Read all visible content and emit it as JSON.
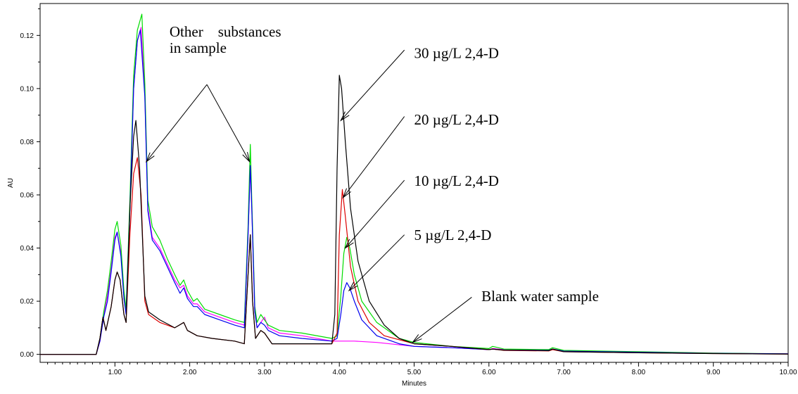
{
  "chart_data": {
    "type": "line",
    "xlabel": "Minutes",
    "ylabel": "AU",
    "xlim": [
      0,
      10
    ],
    "ylim": [
      -0.003,
      0.132
    ],
    "grid": false,
    "x_ticks": [
      1,
      2,
      3,
      4,
      5,
      6,
      7,
      8,
      9,
      10
    ],
    "x_tick_labels": [
      "1.00",
      "2.00",
      "3.00",
      "4.00",
      "5.00",
      "6.00",
      "7.00",
      "8.00",
      "9.00",
      "10.00"
    ],
    "x_minor_step": 0.1,
    "y_ticks": [
      0,
      0.02,
      0.04,
      0.06,
      0.08,
      0.1,
      0.12
    ],
    "y_tick_labels": [
      "0.00",
      "0.02",
      "0.04",
      "0.06",
      "0.08",
      "0.10",
      "0.12"
    ],
    "series": [
      {
        "color": "#ff00ff",
        "points": [
          [
            0,
            0
          ],
          [
            0.75,
            0
          ],
          [
            0.8,
            0.005
          ],
          [
            0.85,
            0.015
          ],
          [
            0.9,
            0.022
          ],
          [
            0.95,
            0.032
          ],
          [
            1.0,
            0.044
          ],
          [
            1.03,
            0.046
          ],
          [
            1.08,
            0.038
          ],
          [
            1.12,
            0.022
          ],
          [
            1.15,
            0.016
          ],
          [
            1.2,
            0.055
          ],
          [
            1.25,
            0.1
          ],
          [
            1.3,
            0.118
          ],
          [
            1.35,
            0.123
          ],
          [
            1.4,
            0.098
          ],
          [
            1.44,
            0.055
          ],
          [
            1.5,
            0.044
          ],
          [
            1.6,
            0.04
          ],
          [
            1.7,
            0.034
          ],
          [
            1.8,
            0.028
          ],
          [
            1.87,
            0.025
          ],
          [
            1.92,
            0.026
          ],
          [
            1.97,
            0.022
          ],
          [
            2.05,
            0.019
          ],
          [
            2.1,
            0.019
          ],
          [
            2.2,
            0.016
          ],
          [
            2.4,
            0.014
          ],
          [
            2.6,
            0.012
          ],
          [
            2.73,
            0.011
          ],
          [
            2.78,
            0.045
          ],
          [
            2.81,
            0.07
          ],
          [
            2.83,
            0.055
          ],
          [
            2.87,
            0.016
          ],
          [
            2.9,
            0.01
          ],
          [
            2.95,
            0.012
          ],
          [
            3.0,
            0.014
          ],
          [
            3.05,
            0.01
          ],
          [
            3.2,
            0.008
          ],
          [
            3.5,
            0.007
          ],
          [
            3.9,
            0.005
          ],
          [
            4.2,
            0.005
          ],
          [
            4.5,
            0.0045
          ],
          [
            5.0,
            0.003
          ],
          [
            5.5,
            0.0025
          ],
          [
            6.0,
            0.0018
          ],
          [
            6.05,
            0.0022
          ],
          [
            6.2,
            0.0018
          ],
          [
            6.8,
            0.0015
          ],
          [
            6.85,
            0.002
          ],
          [
            7.0,
            0.0012
          ],
          [
            8.0,
            0.0008
          ],
          [
            9.0,
            0.0004
          ],
          [
            10.0,
            0.0002
          ]
        ]
      },
      {
        "color": "#00dd00",
        "points": [
          [
            0,
            0
          ],
          [
            0.75,
            0
          ],
          [
            0.8,
            0.006
          ],
          [
            0.85,
            0.016
          ],
          [
            0.9,
            0.024
          ],
          [
            0.95,
            0.035
          ],
          [
            1.0,
            0.047
          ],
          [
            1.03,
            0.05
          ],
          [
            1.08,
            0.041
          ],
          [
            1.12,
            0.024
          ],
          [
            1.15,
            0.017
          ],
          [
            1.2,
            0.058
          ],
          [
            1.25,
            0.105
          ],
          [
            1.3,
            0.122
          ],
          [
            1.36,
            0.128
          ],
          [
            1.4,
            0.102
          ],
          [
            1.44,
            0.058
          ],
          [
            1.5,
            0.048
          ],
          [
            1.6,
            0.043
          ],
          [
            1.7,
            0.036
          ],
          [
            1.8,
            0.03
          ],
          [
            1.87,
            0.026
          ],
          [
            1.92,
            0.028
          ],
          [
            1.97,
            0.024
          ],
          [
            2.05,
            0.02
          ],
          [
            2.1,
            0.021
          ],
          [
            2.2,
            0.017
          ],
          [
            2.4,
            0.015
          ],
          [
            2.6,
            0.013
          ],
          [
            2.73,
            0.012
          ],
          [
            2.78,
            0.048
          ],
          [
            2.81,
            0.079
          ],
          [
            2.83,
            0.058
          ],
          [
            2.87,
            0.018
          ],
          [
            2.9,
            0.012
          ],
          [
            2.95,
            0.015
          ],
          [
            3.0,
            0.013
          ],
          [
            3.05,
            0.011
          ],
          [
            3.2,
            0.009
          ],
          [
            3.5,
            0.008
          ],
          [
            3.9,
            0.006
          ],
          [
            3.97,
            0.007
          ],
          [
            4.02,
            0.022
          ],
          [
            4.06,
            0.038
          ],
          [
            4.1,
            0.044
          ],
          [
            4.14,
            0.04
          ],
          [
            4.2,
            0.03
          ],
          [
            4.3,
            0.02
          ],
          [
            4.5,
            0.012
          ],
          [
            4.8,
            0.006
          ],
          [
            5.0,
            0.0045
          ],
          [
            5.5,
            0.003
          ],
          [
            6.0,
            0.0022
          ],
          [
            6.05,
            0.003
          ],
          [
            6.2,
            0.002
          ],
          [
            6.8,
            0.0018
          ],
          [
            6.85,
            0.0025
          ],
          [
            7.0,
            0.0015
          ],
          [
            8.0,
            0.001
          ],
          [
            9.0,
            0.0005
          ],
          [
            10.0,
            0.0002
          ]
        ]
      },
      {
        "color": "#0000ee",
        "points": [
          [
            0,
            0
          ],
          [
            0.75,
            0
          ],
          [
            0.8,
            0.005
          ],
          [
            0.85,
            0.014
          ],
          [
            0.9,
            0.02
          ],
          [
            0.95,
            0.031
          ],
          [
            1.0,
            0.043
          ],
          [
            1.03,
            0.046
          ],
          [
            1.08,
            0.037
          ],
          [
            1.12,
            0.021
          ],
          [
            1.15,
            0.015
          ],
          [
            1.2,
            0.054
          ],
          [
            1.25,
            0.1
          ],
          [
            1.3,
            0.118
          ],
          [
            1.34,
            0.122
          ],
          [
            1.4,
            0.097
          ],
          [
            1.44,
            0.054
          ],
          [
            1.5,
            0.043
          ],
          [
            1.6,
            0.039
          ],
          [
            1.7,
            0.033
          ],
          [
            1.8,
            0.027
          ],
          [
            1.87,
            0.023
          ],
          [
            1.92,
            0.025
          ],
          [
            1.97,
            0.021
          ],
          [
            2.05,
            0.018
          ],
          [
            2.1,
            0.018
          ],
          [
            2.2,
            0.015
          ],
          [
            2.4,
            0.013
          ],
          [
            2.6,
            0.011
          ],
          [
            2.73,
            0.01
          ],
          [
            2.78,
            0.045
          ],
          [
            2.81,
            0.071
          ],
          [
            2.83,
            0.055
          ],
          [
            2.87,
            0.016
          ],
          [
            2.9,
            0.01
          ],
          [
            2.95,
            0.012
          ],
          [
            3.0,
            0.011
          ],
          [
            3.05,
            0.009
          ],
          [
            3.2,
            0.007
          ],
          [
            3.5,
            0.006
          ],
          [
            3.9,
            0.005
          ],
          [
            3.97,
            0.006
          ],
          [
            4.02,
            0.015
          ],
          [
            4.06,
            0.024
          ],
          [
            4.1,
            0.027
          ],
          [
            4.14,
            0.025
          ],
          [
            4.2,
            0.02
          ],
          [
            4.3,
            0.013
          ],
          [
            4.5,
            0.007
          ],
          [
            4.8,
            0.004
          ],
          [
            5.0,
            0.003
          ],
          [
            5.5,
            0.0025
          ],
          [
            6.0,
            0.0018
          ],
          [
            6.05,
            0.002
          ],
          [
            6.2,
            0.0016
          ],
          [
            6.8,
            0.0015
          ],
          [
            6.85,
            0.002
          ],
          [
            7.0,
            0.0012
          ],
          [
            8.0,
            0.0008
          ],
          [
            9.0,
            0.0004
          ],
          [
            10.0,
            0.0002
          ]
        ]
      },
      {
        "color": "#dd0000",
        "points": [
          [
            0,
            0
          ],
          [
            0.75,
            0
          ],
          [
            0.8,
            0.006
          ],
          [
            0.84,
            0.014
          ],
          [
            0.88,
            0.009
          ],
          [
            0.95,
            0.018
          ],
          [
            1.0,
            0.028
          ],
          [
            1.03,
            0.031
          ],
          [
            1.07,
            0.028
          ],
          [
            1.12,
            0.015
          ],
          [
            1.15,
            0.012
          ],
          [
            1.2,
            0.045
          ],
          [
            1.25,
            0.068
          ],
          [
            1.3,
            0.074
          ],
          [
            1.35,
            0.06
          ],
          [
            1.4,
            0.02
          ],
          [
            1.45,
            0.015
          ],
          [
            1.6,
            0.012
          ],
          [
            1.8,
            0.01
          ],
          [
            1.92,
            0.012
          ],
          [
            1.97,
            0.009
          ],
          [
            2.1,
            0.007
          ],
          [
            2.3,
            0.006
          ],
          [
            2.6,
            0.005
          ],
          [
            2.73,
            0.004
          ],
          [
            2.78,
            0.03
          ],
          [
            2.81,
            0.045
          ],
          [
            2.84,
            0.02
          ],
          [
            2.88,
            0.006
          ],
          [
            2.95,
            0.009
          ],
          [
            3.0,
            0.008
          ],
          [
            3.1,
            0.004
          ],
          [
            3.5,
            0.004
          ],
          [
            3.9,
            0.004
          ],
          [
            3.97,
            0.008
          ],
          [
            4.0,
            0.045
          ],
          [
            4.04,
            0.062
          ],
          [
            4.08,
            0.052
          ],
          [
            4.15,
            0.033
          ],
          [
            4.25,
            0.02
          ],
          [
            4.4,
            0.012
          ],
          [
            4.6,
            0.007
          ],
          [
            5.0,
            0.004
          ],
          [
            5.5,
            0.003
          ],
          [
            6.0,
            0.0018
          ],
          [
            6.05,
            0.002
          ],
          [
            6.2,
            0.0015
          ],
          [
            6.8,
            0.0013
          ],
          [
            6.85,
            0.0018
          ],
          [
            7.0,
            0.001
          ],
          [
            8.0,
            0.0006
          ],
          [
            9.0,
            0.0003
          ],
          [
            10.0,
            0.0001
          ]
        ]
      },
      {
        "color": "#000000",
        "points": [
          [
            0,
            0
          ],
          [
            0.75,
            0
          ],
          [
            0.8,
            0.006
          ],
          [
            0.84,
            0.014
          ],
          [
            0.88,
            0.009
          ],
          [
            0.95,
            0.018
          ],
          [
            1.0,
            0.028
          ],
          [
            1.03,
            0.031
          ],
          [
            1.07,
            0.028
          ],
          [
            1.12,
            0.015
          ],
          [
            1.15,
            0.012
          ],
          [
            1.2,
            0.055
          ],
          [
            1.25,
            0.082
          ],
          [
            1.28,
            0.088
          ],
          [
            1.33,
            0.07
          ],
          [
            1.4,
            0.022
          ],
          [
            1.45,
            0.016
          ],
          [
            1.6,
            0.013
          ],
          [
            1.8,
            0.01
          ],
          [
            1.92,
            0.012
          ],
          [
            1.97,
            0.009
          ],
          [
            2.1,
            0.007
          ],
          [
            2.3,
            0.006
          ],
          [
            2.6,
            0.005
          ],
          [
            2.73,
            0.004
          ],
          [
            2.78,
            0.03
          ],
          [
            2.81,
            0.045
          ],
          [
            2.84,
            0.02
          ],
          [
            2.88,
            0.006
          ],
          [
            2.95,
            0.009
          ],
          [
            3.0,
            0.008
          ],
          [
            3.1,
            0.004
          ],
          [
            3.5,
            0.004
          ],
          [
            3.9,
            0.004
          ],
          [
            3.94,
            0.015
          ],
          [
            3.97,
            0.07
          ],
          [
            4.0,
            0.105
          ],
          [
            4.03,
            0.1
          ],
          [
            4.08,
            0.08
          ],
          [
            4.15,
            0.055
          ],
          [
            4.25,
            0.035
          ],
          [
            4.4,
            0.02
          ],
          [
            4.6,
            0.011
          ],
          [
            4.8,
            0.006
          ],
          [
            5.0,
            0.004
          ],
          [
            5.5,
            0.003
          ],
          [
            6.0,
            0.0018
          ],
          [
            6.05,
            0.002
          ],
          [
            6.2,
            0.0016
          ],
          [
            6.8,
            0.0014
          ],
          [
            6.85,
            0.002
          ],
          [
            7.0,
            0.001
          ],
          [
            8.0,
            0.0006
          ],
          [
            9.0,
            0.0003
          ],
          [
            10.0,
            0.0001
          ]
        ]
      }
    ],
    "annotations": [
      {
        "text": "Other    substances",
        "tx": 1.73,
        "ty": 0.1195
      },
      {
        "text": "in sample",
        "tx": 1.73,
        "ty": 0.1135
      },
      {
        "text": "30 µg/L 2,4-D",
        "tx": 5.0,
        "ty": 0.1115
      },
      {
        "text": "20 µg/L 2,4-D",
        "tx": 5.0,
        "ty": 0.0865
      },
      {
        "text": "10 µg/L 2,4-D",
        "tx": 5.0,
        "ty": 0.0635
      },
      {
        "text": "5 µg/L 2,4-D",
        "tx": 5.0,
        "ty": 0.043
      },
      {
        "text": "Blank water sample",
        "tx": 5.9,
        "ty": 0.02
      }
    ],
    "arrows": [
      {
        "x1": 2.23,
        "y1": 0.1015,
        "x2": 1.42,
        "y2": 0.0725
      },
      {
        "x1": 2.23,
        "y1": 0.1015,
        "x2": 2.8,
        "y2": 0.0725
      },
      {
        "x1": 4.87,
        "y1": 0.1145,
        "x2": 4.02,
        "y2": 0.088
      },
      {
        "x1": 4.87,
        "y1": 0.0895,
        "x2": 4.05,
        "y2": 0.059
      },
      {
        "x1": 4.87,
        "y1": 0.0655,
        "x2": 4.08,
        "y2": 0.04
      },
      {
        "x1": 4.87,
        "y1": 0.045,
        "x2": 4.13,
        "y2": 0.024
      },
      {
        "x1": 5.77,
        "y1": 0.0215,
        "x2": 4.98,
        "y2": 0.0045
      }
    ]
  }
}
